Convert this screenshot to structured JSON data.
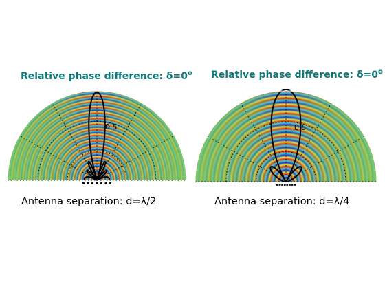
{
  "colors": {
    "title": "#0f7a7a",
    "wave_low": "#1030c8",
    "wave_mid": "#38c8b0",
    "wave_high": "#e82810",
    "background_field": "#7fd060",
    "pattern_line": "#000000",
    "grid": "#000000"
  },
  "panels": [
    {
      "title_text": "Relative phase difference: δ=0",
      "title_degree": "o",
      "caption": "Antenna separation: d=λ/2",
      "radial_tick_label": "0.5",
      "separation_over_wavelength": 0.5,
      "phase_difference_deg": 0
    },
    {
      "title_text": "Relative phase difference: δ=0",
      "title_degree": "o",
      "caption": "Antenna separation: d=λ/4",
      "radial_tick_label": "0.5",
      "separation_over_wavelength": 0.25,
      "phase_difference_deg": 0
    }
  ]
}
